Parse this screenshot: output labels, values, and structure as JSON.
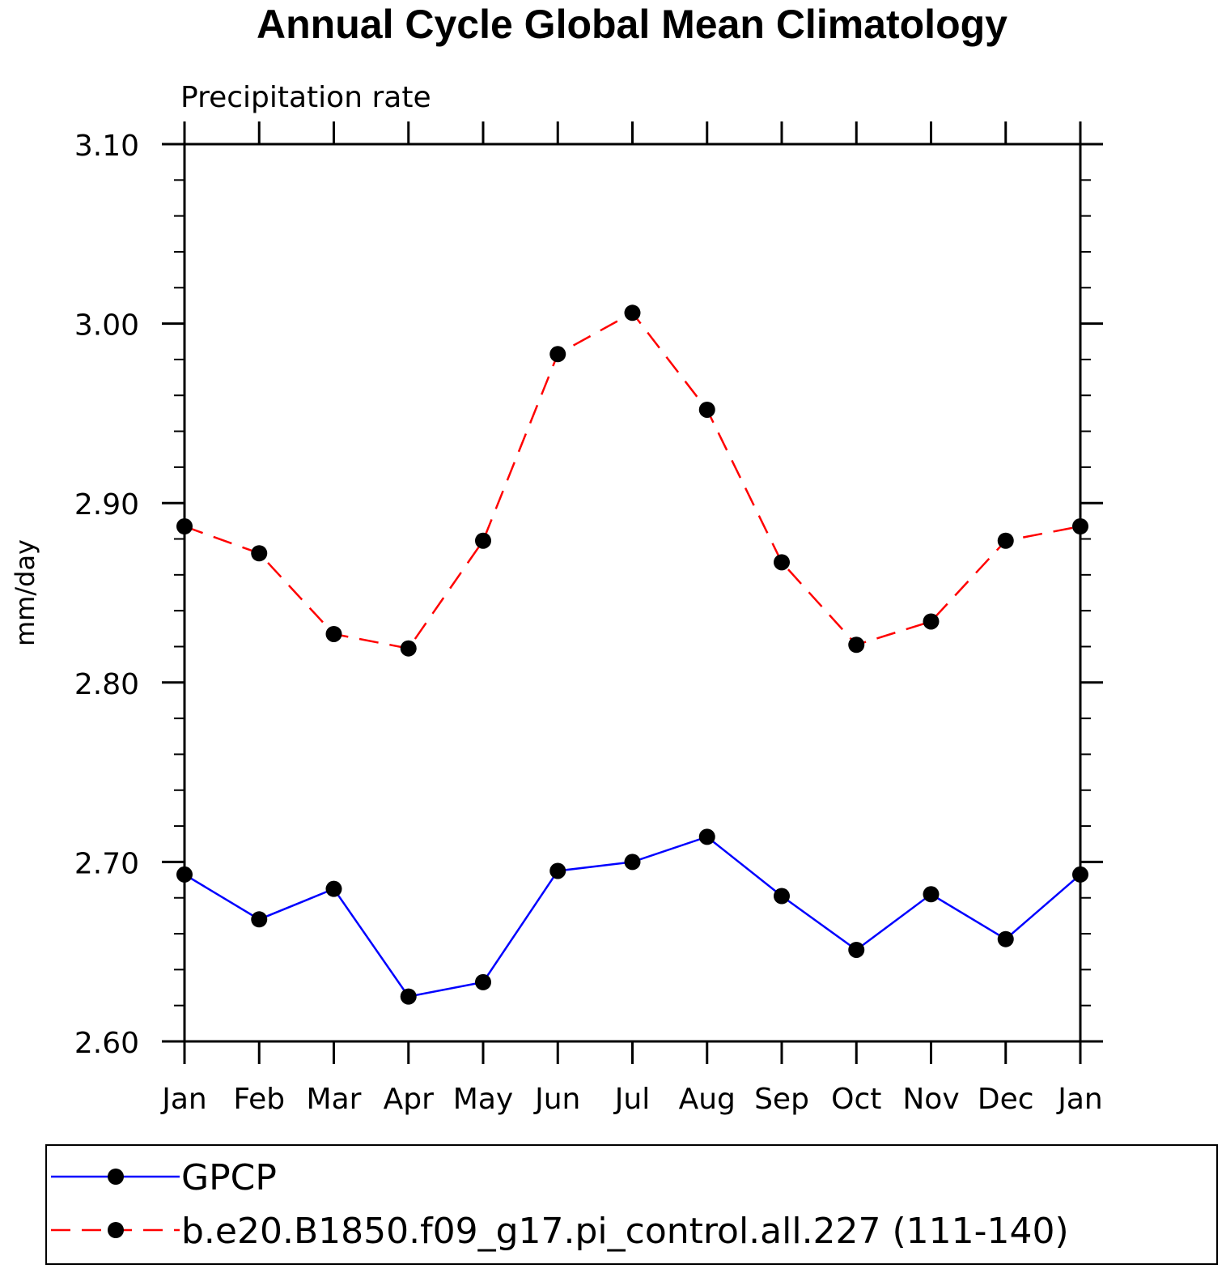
{
  "chart_data": {
    "type": "line",
    "title": "Annual Cycle Global Mean Climatology",
    "subtitle": "Precipitation rate",
    "ylabel": "mm/day",
    "xlabel": "",
    "categories": [
      "Jan",
      "Feb",
      "Mar",
      "Apr",
      "May",
      "Jun",
      "Jul",
      "Aug",
      "Sep",
      "Oct",
      "Nov",
      "Dec",
      "Jan"
    ],
    "ylim": [
      2.6,
      3.1
    ],
    "yticks": [
      2.6,
      2.7,
      2.8,
      2.9,
      3.0,
      3.1
    ],
    "ytick_labels": [
      "2.60",
      "2.70",
      "2.80",
      "2.90",
      "3.00",
      "3.10"
    ],
    "grid": false,
    "legend_position": "bottom",
    "series": [
      {
        "name": "GPCP",
        "color": "#0000ff",
        "dash": "solid",
        "values": [
          2.693,
          2.668,
          2.685,
          2.625,
          2.633,
          2.695,
          2.7,
          2.714,
          2.681,
          2.651,
          2.682,
          2.657,
          2.693
        ]
      },
      {
        "name": "b.e20.B1850.f09_g17.pi_control.all.227 (111-140)",
        "color": "#ff0000",
        "dash": "dashed",
        "values": [
          2.887,
          2.872,
          2.827,
          2.819,
          2.879,
          2.983,
          3.006,
          2.952,
          2.867,
          2.821,
          2.834,
          2.879,
          2.887
        ]
      }
    ]
  }
}
